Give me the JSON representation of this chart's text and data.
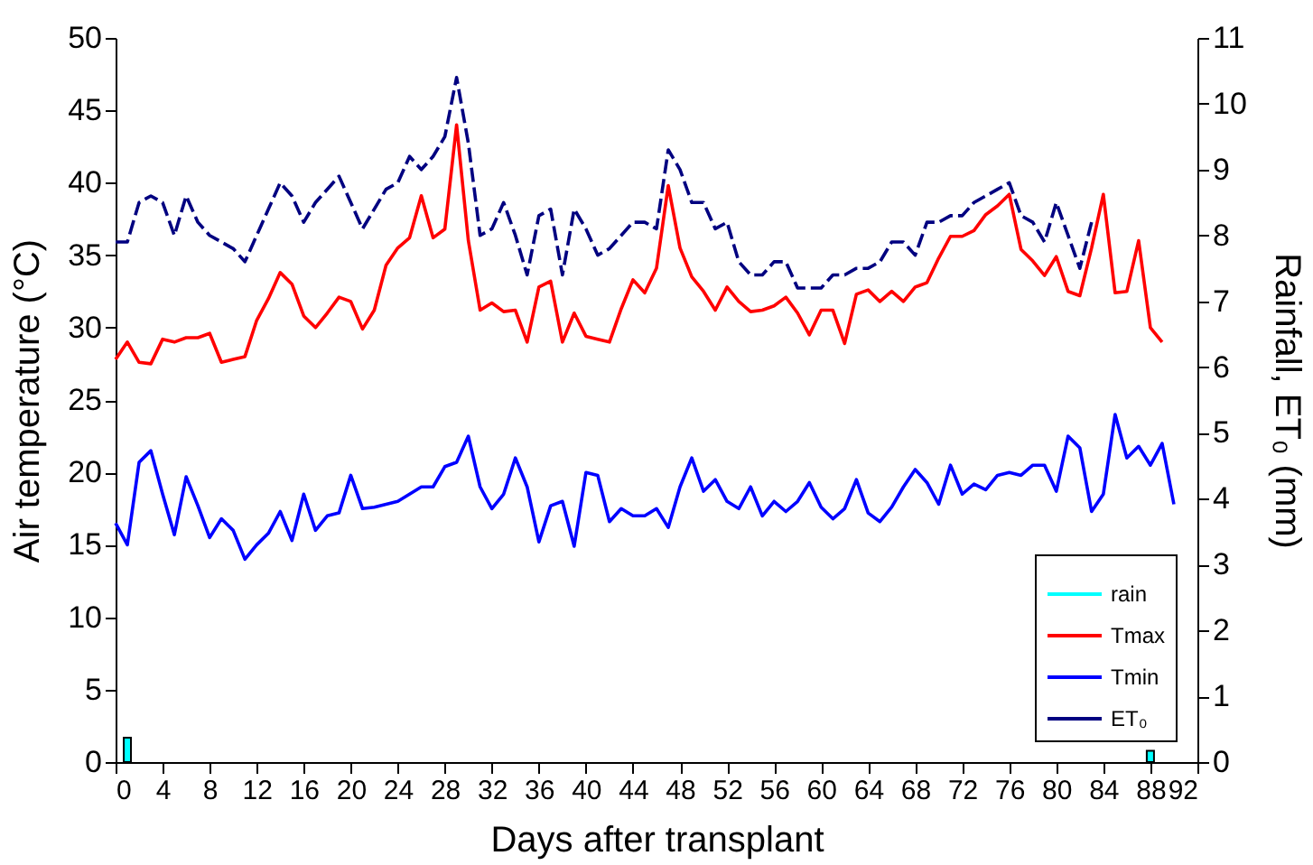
{
  "chart_data": {
    "type": "line",
    "xlabel": "Days after transplant",
    "ylabel": "Air temperature (°C)",
    "y2label": "Rainfall, ET₀ (mm)",
    "xlim": [
      0,
      92
    ],
    "xticks": [
      0,
      4,
      8,
      12,
      16,
      20,
      24,
      28,
      32,
      36,
      40,
      44,
      48,
      52,
      56,
      60,
      64,
      68,
      72,
      76,
      80,
      84,
      88,
      92
    ],
    "ylim": [
      0,
      50
    ],
    "yticks": [
      0,
      5,
      10,
      15,
      20,
      25,
      30,
      35,
      40,
      45,
      50
    ],
    "y2lim": [
      0,
      11
    ],
    "y2ticks": [
      0,
      1,
      2,
      3,
      4,
      5,
      6,
      7,
      8,
      9,
      10,
      11
    ],
    "grid": false,
    "legend": "bottom right",
    "marker": "none",
    "series": [
      {
        "name": "rain",
        "type": "bar",
        "axis": "y2",
        "color": "#00ffff",
        "x": [
          1,
          88
        ],
        "values": [
          0.37,
          0.17
        ]
      },
      {
        "name": "Tmax",
        "line_style": "solid",
        "color": "#ff0000",
        "x": [
          0,
          1,
          2,
          3,
          4,
          5,
          6,
          7,
          8,
          9,
          10,
          11,
          12,
          13,
          14,
          15,
          16,
          17,
          18,
          19,
          20,
          21,
          22,
          23,
          24,
          25,
          26,
          27,
          28,
          29,
          30,
          31,
          32,
          33,
          34,
          35,
          36,
          37,
          38,
          39,
          40,
          41,
          42,
          43,
          44,
          45,
          46,
          47,
          48,
          49,
          50,
          51,
          52,
          53,
          54,
          55,
          56,
          57,
          58,
          59,
          60,
          61,
          62,
          63,
          64,
          65,
          66,
          67,
          68,
          69,
          70,
          71,
          72,
          73,
          74,
          75,
          76,
          77,
          78,
          79,
          80,
          81,
          82,
          83,
          84,
          85,
          86,
          87,
          88,
          89
        ],
        "values": [
          27.8,
          29,
          27.6,
          27.5,
          29.2,
          29,
          29.3,
          29.3,
          29.6,
          27.6,
          27.8,
          28,
          30.5,
          32,
          33.8,
          33,
          30.8,
          30,
          31,
          32.1,
          31.8,
          29.9,
          31.2,
          34.3,
          35.5,
          36.2,
          39.1,
          36.2,
          36.8,
          44,
          36,
          31.2,
          31.7,
          31.1,
          31.2,
          29,
          32.8,
          33.2,
          29,
          31,
          29.4,
          29.2,
          29,
          31.3,
          33.3,
          32.4,
          34.1,
          39.8,
          35.5,
          33.5,
          32.5,
          31.2,
          32.8,
          31.8,
          31.1,
          31.2,
          31.5,
          32.1,
          31,
          29.5,
          31.2,
          31.2,
          28.9,
          32.3,
          32.6,
          31.8,
          32.5,
          31.8,
          32.8,
          33.1,
          34.8,
          36.3,
          36.3,
          36.7,
          37.8,
          38.4,
          39.2,
          35.4,
          34.6,
          33.6,
          34.9,
          32.5,
          32.2,
          35.5,
          39.2,
          32.4,
          32.5,
          36,
          30,
          29
        ]
      },
      {
        "name": "Tmin",
        "line_style": "solid",
        "color": "#0000ff",
        "x": [
          0,
          1,
          2,
          3,
          4,
          5,
          6,
          7,
          8,
          9,
          10,
          11,
          12,
          13,
          14,
          15,
          16,
          17,
          18,
          19,
          20,
          21,
          22,
          23,
          24,
          25,
          26,
          27,
          28,
          29,
          30,
          31,
          32,
          33,
          34,
          35,
          36,
          37,
          38,
          39,
          40,
          41,
          42,
          43,
          44,
          45,
          46,
          47,
          48,
          49,
          50,
          51,
          52,
          53,
          54,
          55,
          56,
          57,
          58,
          59,
          60,
          61,
          62,
          63,
          64,
          65,
          66,
          67,
          68,
          69,
          70,
          71,
          72,
          73,
          74,
          75,
          76,
          77,
          78,
          79,
          80,
          81,
          82,
          83,
          84,
          85,
          86,
          87,
          88,
          89,
          90
        ],
        "values": [
          16.5,
          15,
          20.7,
          21.5,
          18.5,
          15.7,
          19.7,
          17.7,
          15.5,
          16.8,
          16,
          14,
          15,
          15.8,
          17.3,
          15.3,
          18.5,
          16,
          17,
          17.2,
          19.8,
          17.5,
          17.6,
          17.8,
          18,
          18.5,
          19,
          19,
          20.4,
          20.7,
          22.5,
          19,
          17.5,
          18.5,
          21,
          19,
          15.2,
          17.7,
          18,
          14.9,
          20,
          19.8,
          16.6,
          17.5,
          17,
          17,
          17.5,
          16.2,
          19,
          21,
          18.7,
          19.5,
          18,
          17.5,
          19,
          17,
          18,
          17.3,
          18,
          19.3,
          17.6,
          16.8,
          17.5,
          19.5,
          17.2,
          16.6,
          17.6,
          19,
          20.2,
          19.3,
          17.8,
          20.5,
          18.5,
          19.2,
          18.8,
          19.8,
          20,
          19.8,
          20.5,
          20.5,
          18.7,
          22.5,
          21.7,
          17.3,
          18.5,
          24,
          21,
          21.8,
          20.5,
          22,
          17.8
        ]
      },
      {
        "name": "ET₀",
        "line_style": "dashed",
        "axis": "y2",
        "color": "#000080",
        "x": [
          0,
          1,
          2,
          3,
          4,
          5,
          6,
          7,
          8,
          9,
          10,
          11,
          12,
          13,
          14,
          15,
          16,
          17,
          18,
          19,
          20,
          21,
          22,
          23,
          24,
          25,
          26,
          27,
          28,
          29,
          30,
          31,
          32,
          33,
          34,
          35,
          36,
          37,
          38,
          39,
          40,
          41,
          42,
          43,
          44,
          45,
          46,
          47,
          48,
          49,
          50,
          51,
          52,
          53,
          54,
          55,
          56,
          57,
          58,
          59,
          60,
          61,
          62,
          63,
          64,
          65,
          66,
          67,
          68,
          69,
          70,
          71,
          72,
          73,
          74,
          75,
          76,
          77,
          78,
          79,
          80,
          81,
          82,
          83
        ],
        "values": [
          7.9,
          7.9,
          8.5,
          8.6,
          8.5,
          8.0,
          8.6,
          8.2,
          8.0,
          7.9,
          7.8,
          7.6,
          8.0,
          8.4,
          8.8,
          8.6,
          8.2,
          8.5,
          8.7,
          8.9,
          8.5,
          8.1,
          8.4,
          8.7,
          8.8,
          9.2,
          9.0,
          9.2,
          9.5,
          10.4,
          9.4,
          8.0,
          8.1,
          8.5,
          8.0,
          7.4,
          8.3,
          8.4,
          7.4,
          8.4,
          8.1,
          7.7,
          7.8,
          8.0,
          8.2,
          8.2,
          8.1,
          9.3,
          9.0,
          8.5,
          8.5,
          8.1,
          8.2,
          7.6,
          7.4,
          7.4,
          7.6,
          7.6,
          7.2,
          7.2,
          7.2,
          7.4,
          7.4,
          7.5,
          7.5,
          7.6,
          7.9,
          7.9,
          7.7,
          8.2,
          8.2,
          8.3,
          8.3,
          8.5,
          8.6,
          8.7,
          8.8,
          8.3,
          8.2,
          7.9,
          8.5,
          8.0,
          7.5,
          8.2
        ]
      }
    ]
  }
}
